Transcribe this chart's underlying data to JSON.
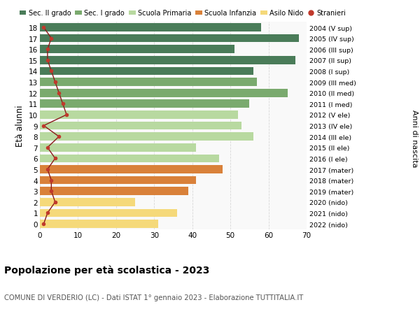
{
  "ages": [
    18,
    17,
    16,
    15,
    14,
    13,
    12,
    11,
    10,
    9,
    8,
    7,
    6,
    5,
    4,
    3,
    2,
    1,
    0
  ],
  "right_labels": [
    "2004 (V sup)",
    "2005 (IV sup)",
    "2006 (III sup)",
    "2007 (II sup)",
    "2008 (I sup)",
    "2009 (III med)",
    "2010 (II med)",
    "2011 (I med)",
    "2012 (V ele)",
    "2013 (IV ele)",
    "2014 (III ele)",
    "2015 (II ele)",
    "2016 (I ele)",
    "2017 (mater)",
    "2018 (mater)",
    "2019 (mater)",
    "2020 (nido)",
    "2021 (nido)",
    "2022 (nido)"
  ],
  "bar_values": [
    58,
    68,
    51,
    67,
    56,
    57,
    65,
    55,
    52,
    53,
    56,
    41,
    47,
    48,
    41,
    39,
    25,
    36,
    31
  ],
  "bar_colors": [
    "#4a7c59",
    "#4a7c59",
    "#4a7c59",
    "#4a7c59",
    "#4a7c59",
    "#7aaa6e",
    "#7aaa6e",
    "#7aaa6e",
    "#b8d9a0",
    "#b8d9a0",
    "#b8d9a0",
    "#b8d9a0",
    "#b8d9a0",
    "#d9813a",
    "#d9813a",
    "#d9813a",
    "#f5d97a",
    "#f5d97a",
    "#f5d97a"
  ],
  "stranieri_values": [
    1,
    3,
    2,
    2,
    3,
    4,
    5,
    6,
    7,
    1,
    5,
    2,
    4,
    2,
    3,
    3,
    4,
    2,
    1
  ],
  "legend_labels": [
    "Sec. II grado",
    "Sec. I grado",
    "Scuola Primaria",
    "Scuola Infanzia",
    "Asilo Nido",
    "Stranieri"
  ],
  "legend_colors": [
    "#4a7c59",
    "#7aaa6e",
    "#b8d9a0",
    "#d9813a",
    "#f5d97a",
    "#c0392b"
  ],
  "title": "Popolazione per età scolastica - 2023",
  "subtitle": "COMUNE DI VERDERIO (LC) - Dati ISTAT 1° gennaio 2023 - Elaborazione TUTTITALIA.IT",
  "ylabel": "Età alunni",
  "right_ylabel": "Anni di nascita",
  "xlim": [
    0,
    70
  ],
  "xticks": [
    0,
    10,
    20,
    30,
    40,
    50,
    60,
    70
  ],
  "background_color": "#ffffff",
  "grid_color": "#d8d8d8",
  "ax_facecolor": "#f9f9f9"
}
